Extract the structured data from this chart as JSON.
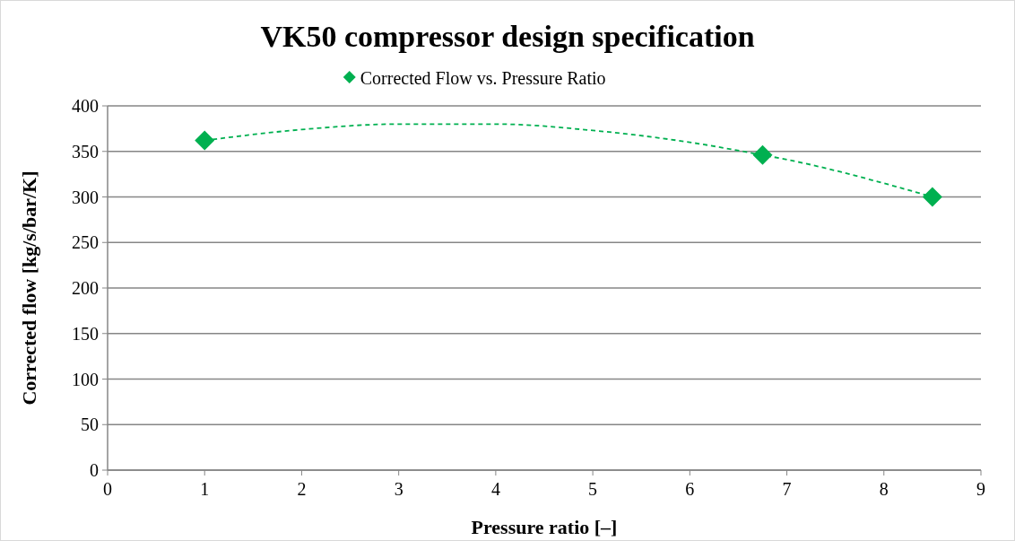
{
  "chart_data": {
    "type": "scatter",
    "title": "VK50 compressor design specification",
    "xlabel": "Pressure ratio [–]",
    "ylabel": "Corrected flow [kg/s/bar/K]",
    "series": [
      {
        "name": "Corrected Flow vs. Pressure Ratio",
        "color": "#00b050",
        "x": [
          1,
          6.75,
          8.5
        ],
        "values": [
          362,
          346,
          300
        ],
        "marker": "diamond"
      },
      {
        "type": "line",
        "color": "#00b050",
        "line_style": "dashed",
        "marker": "none",
        "x": [
          1,
          2,
          3,
          4,
          5,
          6,
          6.75,
          7,
          8,
          8.5
        ],
        "values": [
          362,
          374,
          380,
          380,
          373,
          360,
          346,
          341,
          315,
          300
        ]
      }
    ],
    "xlim": [
      0,
      9
    ],
    "xticks": [
      0,
      1,
      2,
      3,
      4,
      5,
      6,
      7,
      8,
      9
    ],
    "ylim": [
      0,
      400
    ],
    "yticks": [
      0,
      50,
      100,
      150,
      200,
      250,
      300,
      350,
      400
    ],
    "grid": "y",
    "legend": "top"
  }
}
